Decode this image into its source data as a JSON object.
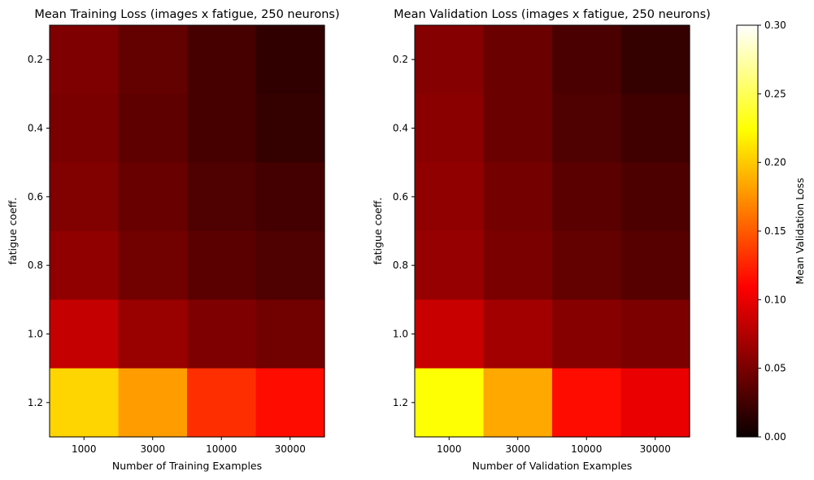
{
  "chart_data": [
    {
      "type": "heatmap",
      "title": "Mean Training Loss (images x fatigue, 250 neurons)",
      "xlabel": "Number of Training Examples",
      "ylabel": "fatigue coeff.",
      "x_categories": [
        "1000",
        "3000",
        "10000",
        "30000"
      ],
      "y_categories": [
        "0.2",
        "0.4",
        "0.6",
        "0.8",
        "1.0",
        "1.2"
      ],
      "colormap": "hot",
      "vmin": 0.0,
      "vmax": 0.3,
      "values": [
        [
          0.052,
          0.04,
          0.027,
          0.017
        ],
        [
          0.05,
          0.038,
          0.027,
          0.019
        ],
        [
          0.053,
          0.042,
          0.031,
          0.026
        ],
        [
          0.06,
          0.046,
          0.036,
          0.031
        ],
        [
          0.083,
          0.064,
          0.052,
          0.046
        ],
        [
          0.205,
          0.18,
          0.13,
          0.115
        ]
      ]
    },
    {
      "type": "heatmap",
      "title": "Mean Validation Loss (images x fatigue, 250 neurons)",
      "xlabel": "Number of Validation Examples",
      "ylabel": "fatigue coeff.",
      "x_categories": [
        "1000",
        "3000",
        "10000",
        "30000"
      ],
      "y_categories": [
        "0.2",
        "0.4",
        "0.6",
        "0.8",
        "1.0",
        "1.2"
      ],
      "colormap": "hot",
      "vmin": 0.0,
      "vmax": 0.3,
      "values": [
        [
          0.055,
          0.043,
          0.029,
          0.019
        ],
        [
          0.057,
          0.043,
          0.031,
          0.024
        ],
        [
          0.06,
          0.048,
          0.036,
          0.03
        ],
        [
          0.063,
          0.05,
          0.04,
          0.034
        ],
        [
          0.085,
          0.068,
          0.056,
          0.051
        ],
        [
          0.225,
          0.185,
          0.115,
          0.1
        ]
      ]
    }
  ],
  "colorbar": {
    "label": "Mean Validation Loss",
    "ticks": [
      "0.00",
      "0.05",
      "0.10",
      "0.15",
      "0.20",
      "0.25",
      "0.30"
    ],
    "tick_values": [
      0,
      0.05,
      0.1,
      0.15,
      0.2,
      0.25,
      0.3
    ]
  }
}
